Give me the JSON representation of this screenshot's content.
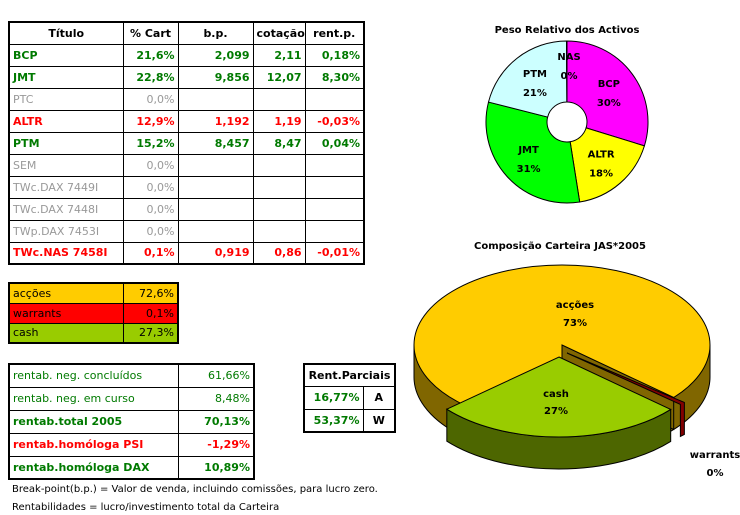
{
  "assets_table": {
    "headers": [
      "Título",
      "% Cart",
      "b.p.",
      "cotação",
      "rent.p."
    ],
    "rows": [
      {
        "cells": [
          "BCP",
          "21,6%",
          "2,099",
          "2,11",
          "0,18%"
        ],
        "style": "g"
      },
      {
        "cells": [
          "JMT",
          "22,8%",
          "9,856",
          "12,07",
          "8,30%"
        ],
        "style": "g"
      },
      {
        "cells": [
          "PTC",
          "0,0%",
          "",
          "",
          ""
        ],
        "style": "gr"
      },
      {
        "cells": [
          "ALTR",
          "12,9%",
          "1,192",
          "1,19",
          "-0,03%"
        ],
        "style": "red"
      },
      {
        "cells": [
          "PTM",
          "15,2%",
          "8,457",
          "8,47",
          "0,04%"
        ],
        "style": "g"
      },
      {
        "cells": [
          "SEM",
          "0,0%",
          "",
          "",
          ""
        ],
        "style": "gr"
      },
      {
        "cells": [
          "TWc.DAX 7449I",
          "0,0%",
          "",
          "",
          ""
        ],
        "style": "gr"
      },
      {
        "cells": [
          "TWc.DAX 7448I",
          "0,0%",
          "",
          "",
          ""
        ],
        "style": "gr"
      },
      {
        "cells": [
          "TWp.DAX 7453I",
          "0,0%",
          "",
          "",
          ""
        ],
        "style": "gr"
      },
      {
        "cells": [
          "TWc.NAS 7458I",
          "0,1%",
          "0,919",
          "0,86",
          "-0,01%"
        ],
        "style": "red"
      }
    ]
  },
  "allocation_table": [
    {
      "label": "acções",
      "value": "72,6%",
      "color": "#ffcc00"
    },
    {
      "label": "warrants",
      "value": "0,1%",
      "color": "#ff0000"
    },
    {
      "label": "cash",
      "value": "27,3%",
      "color": "#99cc00"
    }
  ],
  "returns_table": [
    {
      "label": "rentab. neg. concluídos",
      "value": "61,66%",
      "style": "gl"
    },
    {
      "label": "rentab. neg. em curso",
      "value": "8,48%",
      "style": "gl"
    },
    {
      "label": "rentab.total 2005",
      "value": "70,13%",
      "style": "g"
    },
    {
      "label": "rentab.homóloga PSI",
      "value": "-1,29%",
      "style": "red"
    },
    {
      "label": "rentab.homóloga DAX",
      "value": "10,89%",
      "style": "g"
    }
  ],
  "partial_returns": {
    "header": "Rent.Parciais",
    "rows": [
      [
        "16,77%",
        "A"
      ],
      [
        "53,37%",
        "W"
      ]
    ]
  },
  "notes": [
    "Break-point(b.p.) = Valor de venda, incluindo comissões, para lucro zero.",
    "Rentabilidades = lucro/investimento total da Carteira"
  ],
  "chart_data": [
    {
      "type": "pie",
      "style": "doughnut",
      "title": "Peso Relativo dos Activos",
      "categories": [
        "BCP",
        "ALTR",
        "JMT",
        "PTM",
        "NAS"
      ],
      "values": [
        29.7,
        17.7,
        31.4,
        20.9,
        0.1
      ],
      "labels": [
        "30%",
        "18%",
        "31%",
        "21%",
        "0%"
      ],
      "colors": [
        "#ff00ff",
        "#ffff00",
        "#00ff00",
        "#ccffff",
        "#000080"
      ]
    },
    {
      "type": "pie",
      "style": "3d",
      "title": "Composição Carteira JAS*2005",
      "categories": [
        "acções",
        "warrants",
        "cash"
      ],
      "values": [
        72.6,
        0.1,
        27.3
      ],
      "labels": [
        "73%",
        "0%",
        "27%"
      ],
      "colors": [
        "#ffcc00",
        "#ff0000",
        "#99cc00"
      ]
    }
  ]
}
